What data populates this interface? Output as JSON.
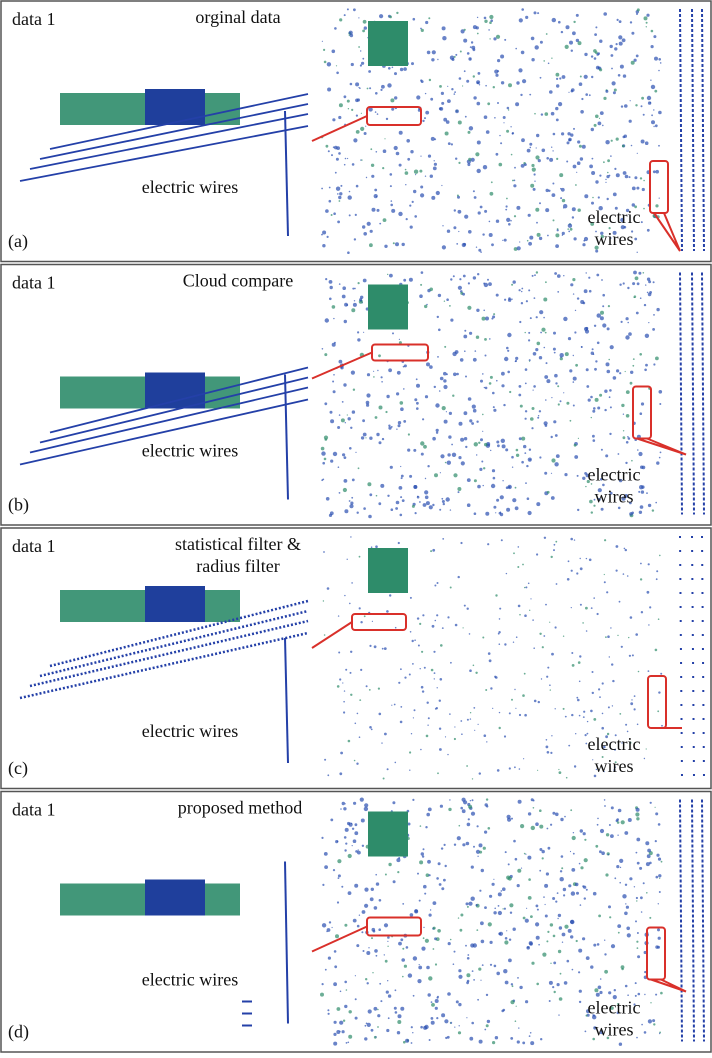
{
  "panels": [
    {
      "dataset": "data 1",
      "title": [
        "orginal data"
      ],
      "left_label": "electric wires",
      "right_label": [
        "electric",
        "wires"
      ],
      "tag": "(a)"
    },
    {
      "dataset": "data 1",
      "title": [
        "Cloud compare"
      ],
      "left_label": "electric wires",
      "right_label": [
        "electric",
        "wires"
      ],
      "tag": "(b)"
    },
    {
      "dataset": "data 1",
      "title": [
        "statistical filter &",
        "radius filter"
      ],
      "left_label": "electric wires",
      "right_label": [
        "electric",
        "wires"
      ],
      "tag": "(c)"
    },
    {
      "dataset": "data 1",
      "title": [
        "proposed method"
      ],
      "left_label": "electric wires",
      "right_label": [
        "electric",
        "wires"
      ],
      "tag": "(d)"
    }
  ]
}
